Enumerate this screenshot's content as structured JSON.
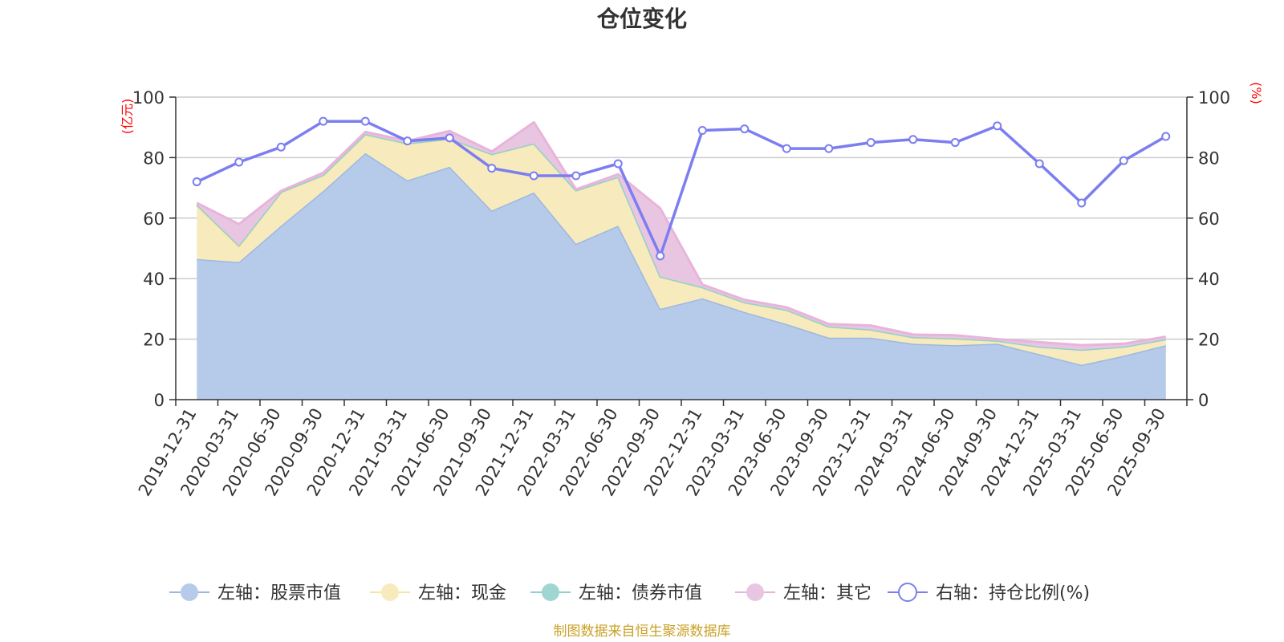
{
  "chart_data": {
    "type": "area",
    "title": "仓位变化",
    "left_unit": "(亿元)",
    "right_unit": "(%)",
    "ylim_left": [
      0,
      100
    ],
    "ylim_right": [
      0,
      100
    ],
    "yticks_left": [
      0,
      20,
      40,
      60,
      80,
      100
    ],
    "yticks_right": [
      0,
      20,
      40,
      60,
      80,
      100
    ],
    "categories": [
      "2019-12-31",
      "2020-03-31",
      "2020-06-30",
      "2020-09-30",
      "2020-12-31",
      "2021-03-31",
      "2021-06-30",
      "2021-09-30",
      "2021-12-31",
      "2022-03-31",
      "2022-06-30",
      "2022-09-30",
      "2022-12-31",
      "2023-03-31",
      "2023-06-30",
      "2023-09-30",
      "2023-12-31",
      "2024-03-31",
      "2024-06-30",
      "2024-09-30",
      "2024-12-31",
      "2025-03-31",
      "2025-06-30",
      "2025-09-30"
    ],
    "series": [
      {
        "name": "左轴：股票市值",
        "axis": "left",
        "kind": "area",
        "color": "#9db8e0",
        "fill": "#b6cbea",
        "values": [
          46.5,
          45.5,
          57.5,
          69,
          81.5,
          72.5,
          77,
          62.5,
          68.5,
          51.5,
          57.5,
          30,
          33.5,
          29,
          25,
          20.5,
          20.5,
          18.5,
          18,
          18.5,
          15,
          11.5,
          14.5,
          18
        ]
      },
      {
        "name": "左轴：现金",
        "axis": "left",
        "kind": "area",
        "color": "#f7e6a3",
        "fill": "#f7ebbd",
        "values": [
          17.5,
          5,
          11,
          5,
          6,
          12,
          9,
          18.5,
          16,
          17.5,
          16,
          10.5,
          3.5,
          3,
          4.5,
          3.5,
          2.5,
          2,
          2,
          1,
          2.5,
          5,
          3,
          2
        ]
      },
      {
        "name": "左轴：债券市值",
        "axis": "left",
        "kind": "area",
        "color": "#8fd1cd",
        "fill": "#9fd6d2",
        "values": [
          0.5,
          0.5,
          0.2,
          0.3,
          0.3,
          0.2,
          0.3,
          0.2,
          0.2,
          0.2,
          0.2,
          0.2,
          0.2,
          0.2,
          0.2,
          0.2,
          0.2,
          0.2,
          0.3,
          0,
          0,
          0,
          0,
          0
        ]
      },
      {
        "name": "左轴：其它",
        "axis": "left",
        "kind": "area",
        "color": "#e8b4da",
        "fill": "#e8c6e2",
        "values": [
          0.5,
          7,
          0.3,
          0.7,
          0.7,
          0.8,
          2.5,
          0.8,
          7,
          0.3,
          0.8,
          22.5,
          0.8,
          0.8,
          0.8,
          0.8,
          1.3,
          0.8,
          1,
          0.5,
          1.5,
          1.5,
          1,
          0.8
        ]
      },
      {
        "name": "右轴：持仓比例(%)",
        "axis": "right",
        "kind": "line",
        "color": "#7b7ef0",
        "values": [
          72,
          78.5,
          83.5,
          92,
          92,
          85.5,
          86.5,
          76.5,
          74,
          74,
          78,
          47.5,
          89,
          89.5,
          83,
          83,
          85,
          86,
          85,
          90.5,
          78,
          65,
          79,
          87
        ]
      }
    ]
  },
  "source": "制图数据来自恒生聚源数据库"
}
